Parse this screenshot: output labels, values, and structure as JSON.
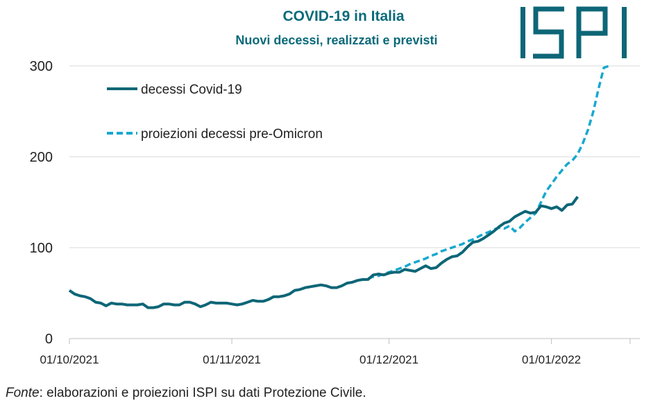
{
  "chart_data": {
    "type": "line",
    "title": "COVID-19 in Italia",
    "subtitle": "Nuovi decessi, realizzati e previsti",
    "xlabel": "",
    "ylabel": "",
    "ylim": [
      0,
      300
    ],
    "yticks": [
      "0",
      "100",
      "200",
      "300"
    ],
    "xticks": [
      {
        "label": "01/10/2021",
        "day": 0
      },
      {
        "label": "01/11/2021",
        "day": 31
      },
      {
        "label": "01/12/2021",
        "day": 61
      },
      {
        "label": "01/01/2022",
        "day": 92
      }
    ],
    "x_end_day": 107,
    "grid": true,
    "legend_position": "top-left",
    "series": [
      {
        "name": "decessi Covid-19",
        "style": "solid",
        "color": "#0d6677",
        "points": [
          [
            0,
            53
          ],
          [
            1,
            49
          ],
          [
            2,
            47
          ],
          [
            3,
            46
          ],
          [
            4,
            44
          ],
          [
            5,
            40
          ],
          [
            6,
            39
          ],
          [
            7,
            36
          ],
          [
            8,
            39
          ],
          [
            9,
            38
          ],
          [
            10,
            38
          ],
          [
            11,
            37
          ],
          [
            12,
            37
          ],
          [
            13,
            37
          ],
          [
            14,
            38
          ],
          [
            15,
            34
          ],
          [
            16,
            34
          ],
          [
            17,
            35
          ],
          [
            18,
            38
          ],
          [
            19,
            38
          ],
          [
            20,
            37
          ],
          [
            21,
            37
          ],
          [
            22,
            40
          ],
          [
            23,
            40
          ],
          [
            24,
            38
          ],
          [
            25,
            35
          ],
          [
            26,
            37
          ],
          [
            27,
            40
          ],
          [
            28,
            39
          ],
          [
            29,
            39
          ],
          [
            30,
            39
          ],
          [
            31,
            38
          ],
          [
            32,
            37
          ],
          [
            33,
            38
          ],
          [
            34,
            40
          ],
          [
            35,
            42
          ],
          [
            36,
            41
          ],
          [
            37,
            41
          ],
          [
            38,
            43
          ],
          [
            39,
            46
          ],
          [
            40,
            46
          ],
          [
            41,
            47
          ],
          [
            42,
            49
          ],
          [
            43,
            53
          ],
          [
            44,
            54
          ],
          [
            45,
            56
          ],
          [
            46,
            57
          ],
          [
            47,
            58
          ],
          [
            48,
            59
          ],
          [
            49,
            58
          ],
          [
            50,
            56
          ],
          [
            51,
            56
          ],
          [
            52,
            58
          ],
          [
            53,
            61
          ],
          [
            54,
            62
          ],
          [
            55,
            64
          ],
          [
            56,
            65
          ],
          [
            57,
            65
          ],
          [
            58,
            70
          ],
          [
            59,
            71
          ],
          [
            60,
            70
          ],
          [
            61,
            72
          ],
          [
            62,
            73
          ],
          [
            63,
            73
          ],
          [
            64,
            76
          ],
          [
            65,
            75
          ],
          [
            66,
            74
          ],
          [
            67,
            77
          ],
          [
            68,
            80
          ],
          [
            69,
            77
          ],
          [
            70,
            78
          ],
          [
            71,
            83
          ],
          [
            72,
            87
          ],
          [
            73,
            90
          ],
          [
            74,
            91
          ],
          [
            75,
            95
          ],
          [
            76,
            101
          ],
          [
            77,
            106
          ],
          [
            78,
            107
          ],
          [
            79,
            110
          ],
          [
            80,
            114
          ],
          [
            81,
            118
          ],
          [
            82,
            123
          ],
          [
            83,
            127
          ],
          [
            84,
            129
          ],
          [
            85,
            134
          ],
          [
            86,
            137
          ],
          [
            87,
            140
          ],
          [
            88,
            138
          ],
          [
            89,
            139
          ],
          [
            90,
            146
          ],
          [
            91,
            145
          ],
          [
            92,
            143
          ],
          [
            93,
            145
          ],
          [
            94,
            141
          ],
          [
            95,
            147
          ],
          [
            96,
            148
          ],
          [
            97,
            156
          ]
        ]
      },
      {
        "name": "proiezioni decessi pre-Omicron",
        "style": "dashed",
        "color": "#17a8cf",
        "points": [
          [
            57,
            66
          ],
          [
            58,
            68
          ],
          [
            59,
            69
          ],
          [
            60,
            71
          ],
          [
            61,
            73
          ],
          [
            62,
            75
          ],
          [
            63,
            77
          ],
          [
            64,
            79
          ],
          [
            65,
            82
          ],
          [
            66,
            84
          ],
          [
            67,
            86
          ],
          [
            68,
            88
          ],
          [
            69,
            91
          ],
          [
            70,
            93
          ],
          [
            71,
            96
          ],
          [
            72,
            98
          ],
          [
            73,
            100
          ],
          [
            74,
            102
          ],
          [
            75,
            104
          ],
          [
            76,
            107
          ],
          [
            77,
            109
          ],
          [
            78,
            112
          ],
          [
            79,
            115
          ],
          [
            80,
            117
          ],
          [
            81,
            120
          ],
          [
            82,
            122
          ],
          [
            83,
            121
          ],
          [
            84,
            124
          ],
          [
            85,
            118
          ],
          [
            86,
            122
          ],
          [
            87,
            128
          ],
          [
            88,
            133
          ],
          [
            89,
            138
          ],
          [
            90,
            150
          ],
          [
            91,
            162
          ],
          [
            92,
            170
          ],
          [
            93,
            178
          ],
          [
            94,
            185
          ],
          [
            95,
            192
          ],
          [
            96,
            196
          ],
          [
            97,
            203
          ],
          [
            98,
            215
          ],
          [
            99,
            230
          ],
          [
            100,
            250
          ],
          [
            101,
            275
          ],
          [
            102,
            298
          ],
          [
            103,
            300
          ]
        ]
      }
    ]
  },
  "logo": {
    "text": "ISPI",
    "color": "#0d6677"
  },
  "source": {
    "label": "Fonte",
    "text": ": elaborazioni e proiezioni ISPI su dati Protezione Civile."
  }
}
